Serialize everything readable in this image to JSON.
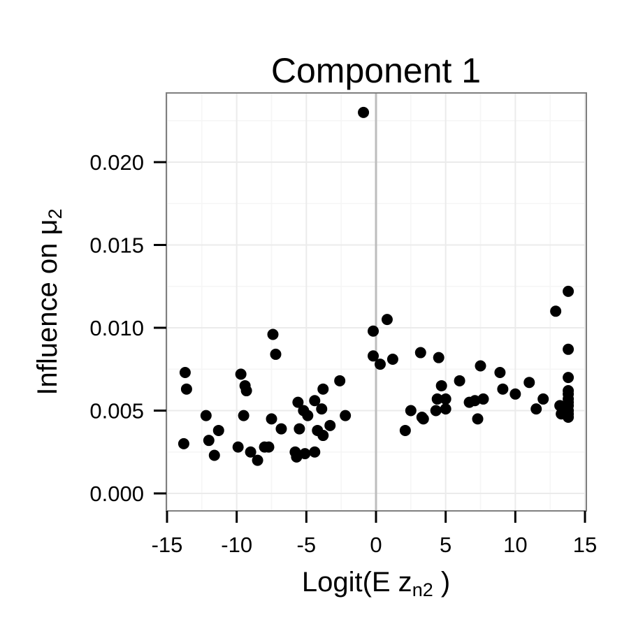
{
  "chart_data": {
    "type": "scatter",
    "title": "Component 1",
    "xlabel": {
      "main": "Logit(E z",
      "sub": "n2",
      "suffix": " )"
    },
    "ylabel": {
      "main": "Influence on  μ",
      "sub": "2"
    },
    "xlim": [
      -15,
      15
    ],
    "ylim": [
      -0.001,
      0.0241
    ],
    "x_ticks": [
      -15,
      -10,
      -5,
      0,
      5,
      10,
      15
    ],
    "x_tick_labels": [
      "-15",
      "-10",
      "-5",
      "0",
      "5",
      "10",
      "15"
    ],
    "y_ticks": [
      0,
      0.005,
      0.01,
      0.015,
      0.02
    ],
    "y_tick_labels": [
      "0.000",
      "0.005",
      "0.010",
      "0.015",
      "0.020"
    ],
    "grid": true,
    "vline_x": 0,
    "colors": {
      "point": "#000000",
      "grid": "#ebebeb",
      "border": "#7f7f7f",
      "vline": "#bdbdbd"
    },
    "points": [
      {
        "x": -13.7,
        "y": 0.0073
      },
      {
        "x": -13.6,
        "y": 0.0063
      },
      {
        "x": -13.8,
        "y": 0.003
      },
      {
        "x": -12.2,
        "y": 0.0047
      },
      {
        "x": -12.0,
        "y": 0.0032
      },
      {
        "x": -11.6,
        "y": 0.0023
      },
      {
        "x": -11.3,
        "y": 0.0038
      },
      {
        "x": -9.9,
        "y": 0.0028
      },
      {
        "x": -9.7,
        "y": 0.0072
      },
      {
        "x": -9.5,
        "y": 0.0047
      },
      {
        "x": -9.4,
        "y": 0.0065
      },
      {
        "x": -9.3,
        "y": 0.0062
      },
      {
        "x": -9.0,
        "y": 0.0025
      },
      {
        "x": -8.5,
        "y": 0.002
      },
      {
        "x": -8.0,
        "y": 0.0028
      },
      {
        "x": -7.7,
        "y": 0.0028
      },
      {
        "x": -7.5,
        "y": 0.0045
      },
      {
        "x": -7.4,
        "y": 0.0096
      },
      {
        "x": -7.2,
        "y": 0.0084
      },
      {
        "x": -6.8,
        "y": 0.0039
      },
      {
        "x": -5.8,
        "y": 0.0025
      },
      {
        "x": -5.7,
        "y": 0.0022
      },
      {
        "x": -5.6,
        "y": 0.0055
      },
      {
        "x": -5.5,
        "y": 0.0039
      },
      {
        "x": -5.2,
        "y": 0.005
      },
      {
        "x": -5.1,
        "y": 0.0024
      },
      {
        "x": -4.9,
        "y": 0.0047
      },
      {
        "x": -4.4,
        "y": 0.0025
      },
      {
        "x": -4.4,
        "y": 0.0056
      },
      {
        "x": -4.2,
        "y": 0.0038
      },
      {
        "x": -3.9,
        "y": 0.0051
      },
      {
        "x": -3.8,
        "y": 0.0063
      },
      {
        "x": -3.8,
        "y": 0.0035
      },
      {
        "x": -3.3,
        "y": 0.0041
      },
      {
        "x": -2.6,
        "y": 0.0068
      },
      {
        "x": -2.2,
        "y": 0.0047
      },
      {
        "x": -0.9,
        "y": 0.023
      },
      {
        "x": -0.2,
        "y": 0.0098
      },
      {
        "x": -0.2,
        "y": 0.0083
      },
      {
        "x": 0.3,
        "y": 0.0078
      },
      {
        "x": 0.8,
        "y": 0.0105
      },
      {
        "x": 1.2,
        "y": 0.0081
      },
      {
        "x": 2.1,
        "y": 0.0038
      },
      {
        "x": 2.5,
        "y": 0.005
      },
      {
        "x": 3.2,
        "y": 0.0085
      },
      {
        "x": 3.3,
        "y": 0.0046
      },
      {
        "x": 3.4,
        "y": 0.0045
      },
      {
        "x": 4.3,
        "y": 0.005
      },
      {
        "x": 4.4,
        "y": 0.0057
      },
      {
        "x": 4.5,
        "y": 0.0082
      },
      {
        "x": 4.7,
        "y": 0.0065
      },
      {
        "x": 5.0,
        "y": 0.0051
      },
      {
        "x": 5.0,
        "y": 0.0057
      },
      {
        "x": 6.0,
        "y": 0.0068
      },
      {
        "x": 6.7,
        "y": 0.0055
      },
      {
        "x": 7.1,
        "y": 0.0056
      },
      {
        "x": 7.3,
        "y": 0.0045
      },
      {
        "x": 7.5,
        "y": 0.0077
      },
      {
        "x": 7.7,
        "y": 0.0057
      },
      {
        "x": 8.9,
        "y": 0.0073
      },
      {
        "x": 9.1,
        "y": 0.0063
      },
      {
        "x": 10.0,
        "y": 0.006
      },
      {
        "x": 11.0,
        "y": 0.0067
      },
      {
        "x": 11.5,
        "y": 0.0051
      },
      {
        "x": 12.0,
        "y": 0.0057
      },
      {
        "x": 12.9,
        "y": 0.011
      },
      {
        "x": 13.2,
        "y": 0.0053
      },
      {
        "x": 13.3,
        "y": 0.0048
      },
      {
        "x": 13.8,
        "y": 0.0122
      },
      {
        "x": 13.8,
        "y": 0.0087
      },
      {
        "x": 13.8,
        "y": 0.007
      },
      {
        "x": 13.8,
        "y": 0.0062
      },
      {
        "x": 13.8,
        "y": 0.006
      },
      {
        "x": 13.8,
        "y": 0.0057
      },
      {
        "x": 13.8,
        "y": 0.0055
      },
      {
        "x": 13.8,
        "y": 0.0053
      },
      {
        "x": 13.8,
        "y": 0.005
      },
      {
        "x": 13.8,
        "y": 0.0048
      },
      {
        "x": 13.8,
        "y": 0.0046
      }
    ]
  }
}
